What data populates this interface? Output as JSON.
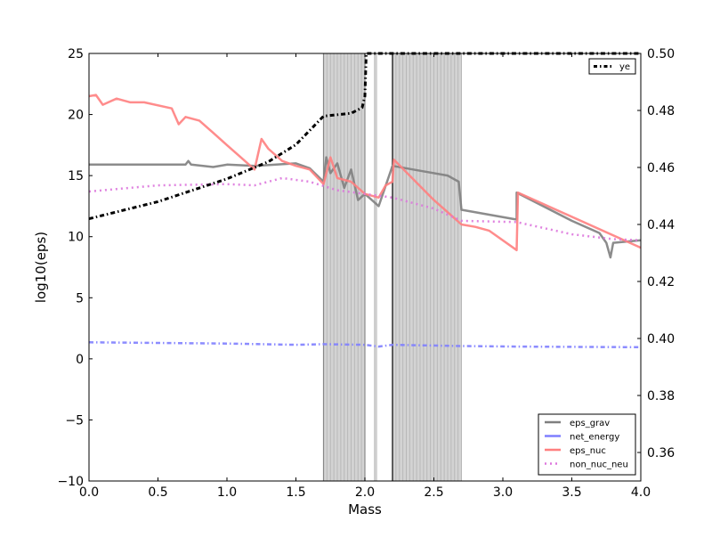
{
  "chart_data": {
    "type": "line",
    "title": "",
    "xlabel": "Mass",
    "ylabel": "log10(eps)",
    "xlim": [
      0,
      4
    ],
    "ylim": [
      -10,
      25
    ],
    "y2lim": [
      0.35,
      0.5
    ],
    "xticks": [
      "0.0",
      "0.5",
      "1.0",
      "1.5",
      "2.0",
      "2.5",
      "3.0",
      "3.5",
      "4.0"
    ],
    "yticks": [
      "−10",
      "−5",
      "0",
      "5",
      "10",
      "15",
      "20",
      "25"
    ],
    "y2ticks": [
      "0.36",
      "0.38",
      "0.40",
      "0.42",
      "0.44",
      "0.46",
      "0.48",
      "0.50"
    ],
    "xtick_values": [
      0,
      0.5,
      1,
      1.5,
      2,
      2.5,
      3,
      3.5,
      4
    ],
    "ytick_values": [
      -10,
      -5,
      0,
      5,
      10,
      15,
      20,
      25
    ],
    "y2tick_values": [
      0.36,
      0.38,
      0.4,
      0.42,
      0.44,
      0.46,
      0.48,
      0.5
    ],
    "grid": false,
    "shaded_mass_ranges": [
      [
        1.7,
        2.0
      ],
      [
        2.07,
        2.09
      ],
      [
        2.2,
        2.7
      ]
    ],
    "boundary_lines": [
      1.7,
      2.0,
      2.2
    ],
    "legend_main": {
      "placement": "bottom-right"
    },
    "legend_right": {
      "placement": "top-right"
    },
    "series": [
      {
        "name": "eps_grav",
        "axis": "left",
        "color": "#7f7f7f",
        "style": "solid",
        "x": [
          0,
          0.7,
          0.72,
          0.74,
          0.9,
          1.0,
          1.2,
          1.5,
          1.6,
          1.7,
          1.72,
          1.75,
          1.8,
          1.85,
          1.9,
          1.95,
          2.0,
          2.05,
          2.1,
          2.2,
          2.4,
          2.6,
          2.68,
          2.7,
          3.1,
          3.1,
          3.5,
          3.7,
          3.75,
          3.78,
          3.8,
          4.0
        ],
        "y": [
          15.9,
          15.9,
          16.2,
          15.9,
          15.7,
          15.9,
          15.8,
          16.0,
          15.6,
          14.5,
          16.5,
          15.2,
          16.0,
          14.0,
          15.5,
          13.0,
          13.5,
          13.0,
          12.5,
          15.8,
          15.4,
          15.0,
          14.5,
          12.2,
          11.4,
          13.6,
          11.3,
          10.3,
          9.5,
          8.3,
          9.5,
          9.7
        ]
      },
      {
        "name": "net_energy",
        "axis": "left",
        "color": "#7f7fff",
        "style": "dashdot",
        "x": [
          0,
          0.5,
          1.0,
          1.5,
          1.7,
          2.0,
          2.1,
          2.2,
          2.7,
          3.1,
          4.0
        ],
        "y": [
          1.35,
          1.3,
          1.25,
          1.15,
          1.2,
          1.15,
          1.0,
          1.15,
          1.05,
          1.0,
          0.95
        ]
      },
      {
        "name": "eps_nuc",
        "axis": "left",
        "color": "#ff7f7f",
        "style": "solid",
        "x": [
          0,
          0.05,
          0.1,
          0.2,
          0.3,
          0.4,
          0.6,
          0.65,
          0.7,
          0.8,
          0.9,
          1.0,
          1.1,
          1.2,
          1.25,
          1.3,
          1.4,
          1.5,
          1.6,
          1.7,
          1.75,
          1.8,
          1.9,
          2.0,
          2.1,
          2.15,
          2.2,
          2.21,
          2.5,
          2.7,
          2.8,
          2.9,
          3.1,
          3.11,
          4.0
        ],
        "y": [
          21.5,
          21.6,
          20.8,
          21.3,
          21.0,
          21.0,
          20.5,
          19.2,
          19.8,
          19.5,
          18.5,
          17.5,
          16.5,
          15.5,
          18.0,
          17.2,
          16.2,
          15.8,
          15.5,
          14.3,
          16.5,
          14.8,
          14.5,
          13.5,
          13.2,
          14.2,
          14.5,
          16.3,
          13.0,
          11.0,
          10.8,
          10.5,
          8.9,
          13.6,
          9.1
        ]
      },
      {
        "name": "non_nuc_neu",
        "axis": "left",
        "color": "#dd77dd",
        "style": "dotted",
        "x": [
          0,
          0.5,
          1.0,
          1.2,
          1.4,
          1.6,
          1.8,
          2.2,
          2.5,
          2.7,
          3.1,
          3.5,
          3.8,
          4.0
        ],
        "y": [
          13.7,
          14.2,
          14.3,
          14.2,
          14.8,
          14.5,
          13.8,
          13.2,
          12.3,
          11.3,
          11.2,
          10.2,
          9.8,
          9.7
        ]
      },
      {
        "name": "ye",
        "axis": "right",
        "color": "#000000",
        "style": "dashdot",
        "x": [
          0,
          0.5,
          1.0,
          1.3,
          1.5,
          1.7,
          1.9,
          1.98,
          2.0,
          2.01,
          4.0
        ],
        "y": [
          0.442,
          0.448,
          0.456,
          0.462,
          0.468,
          0.478,
          0.479,
          0.481,
          0.485,
          0.5,
          0.5
        ]
      }
    ]
  }
}
